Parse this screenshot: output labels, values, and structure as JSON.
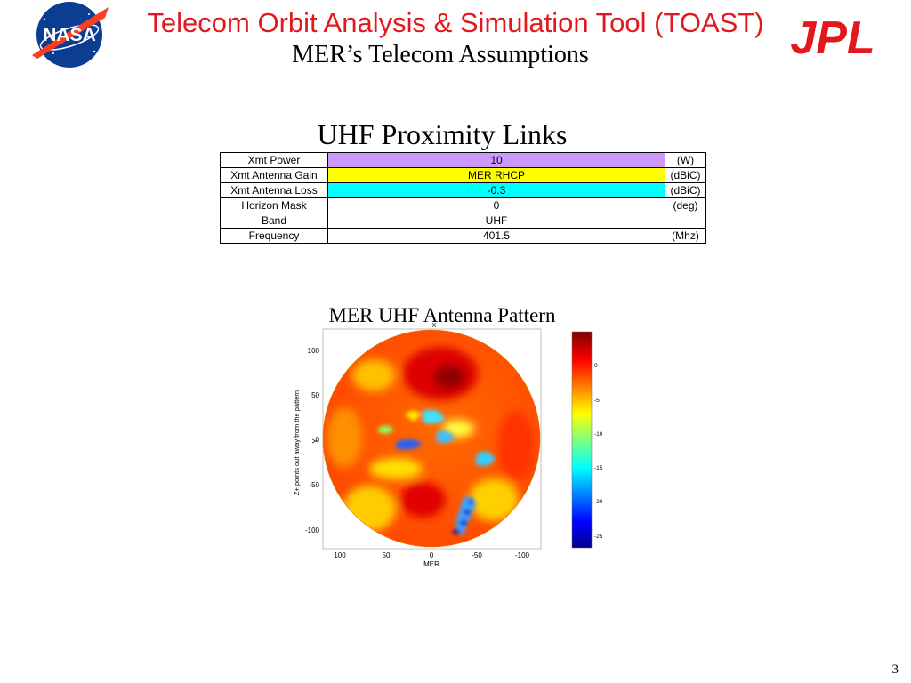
{
  "header": {
    "main_title": "Telecom Orbit Analysis & Simulation Tool (TOAST)",
    "sub_title": "MER’s Telecom Assumptions",
    "nasa_logo_text": "NASA",
    "jpl_logo_text": "JPL"
  },
  "section_title": "UHF Proximity Links",
  "table": {
    "rows": [
      {
        "label": "Xmt Power",
        "value": "10",
        "unit": "(W)",
        "color": "#cc99ff"
      },
      {
        "label": "Xmt Antenna Gain",
        "value": "MER RHCP",
        "unit": "(dBiC)",
        "color": "#ffff00"
      },
      {
        "label": "Xmt Antenna Loss",
        "value": "-0.3",
        "unit": "(dBiC)",
        "color": "#00ffff"
      },
      {
        "label": "Horizon Mask",
        "value": "0",
        "unit": "(deg)",
        "color": ""
      },
      {
        "label": "Band",
        "value": "UHF",
        "unit": "",
        "color": ""
      },
      {
        "label": "Frequency",
        "value": "401.5",
        "unit": "(Mhz)",
        "color": ""
      }
    ]
  },
  "pattern": {
    "title": "MER UHF Antenna Pattern",
    "x_top_label": "X",
    "y_axis_label": "Z+ points out away from the pattern",
    "y_mid_label": "Y",
    "x_axis_label": "MER",
    "y_ticks": [
      "100",
      "50",
      "0",
      "-50",
      "-100"
    ],
    "x_ticks": [
      "100",
      "50",
      "0",
      "-50",
      "-100"
    ],
    "colorbar_ticks": [
      "0",
      "-5",
      "-10",
      "-15",
      "-20",
      "-25"
    ],
    "colormap": "jet"
  },
  "page_number": "3"
}
